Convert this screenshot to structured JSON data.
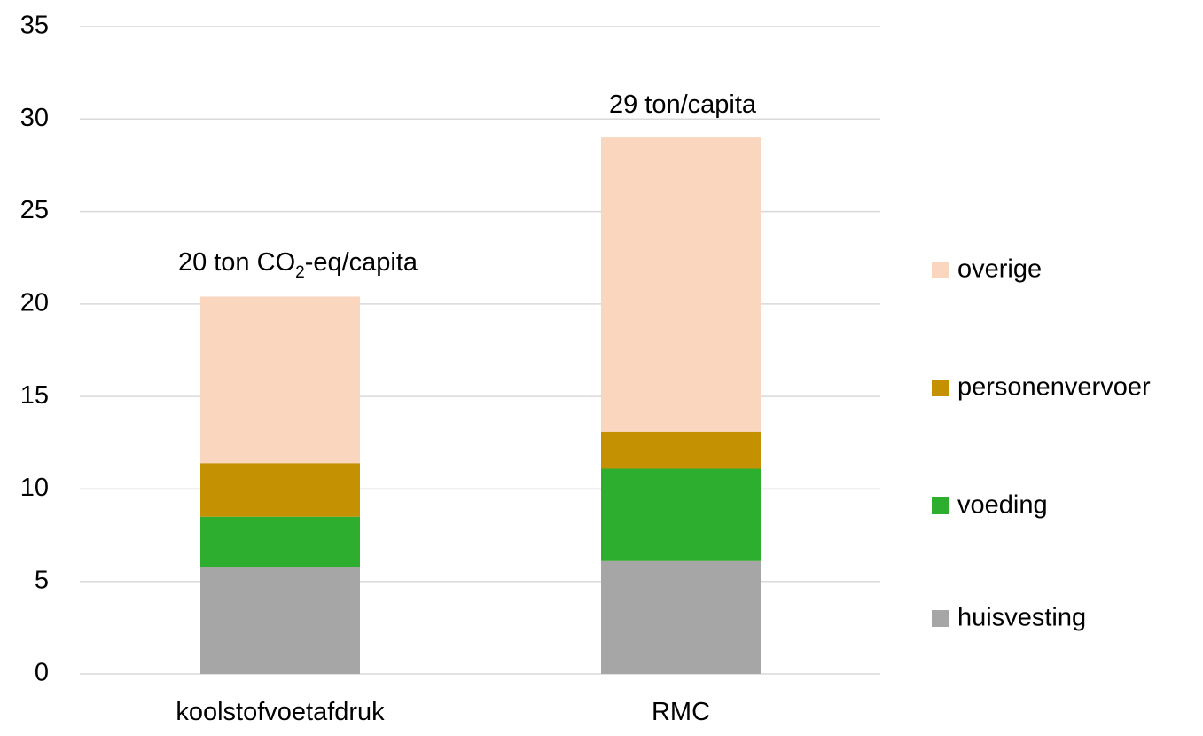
{
  "chart_data": {
    "type": "bar",
    "stacked": true,
    "categories": [
      "koolstofvoetafdruk",
      "RMC"
    ],
    "series": [
      {
        "name": "huisvesting",
        "color": "#a6a6a6",
        "values": [
          5.8,
          6.1
        ]
      },
      {
        "name": "voeding",
        "color": "#2eae2e",
        "values": [
          2.7,
          5.0
        ]
      },
      {
        "name": "personenvervoer",
        "color": "#c49102",
        "values": [
          2.9,
          2.0
        ]
      },
      {
        "name": "overige",
        "color": "#f9d6bd",
        "values": [
          9.0,
          15.9
        ]
      }
    ],
    "annotations": [
      {
        "category": "koolstofvoetafdruk",
        "text_before": "20 ton CO",
        "subscript": "2",
        "text_after": "-eq/capita"
      },
      {
        "category": "RMC",
        "text_before": "29 ton/capita",
        "subscript": "",
        "text_after": ""
      }
    ],
    "ylim": [
      0,
      35
    ],
    "yticks": [
      0,
      5,
      10,
      15,
      20,
      25,
      30,
      35
    ],
    "grid": true,
    "gridline_color": "#d9d9d9",
    "legend_position": "right",
    "legend_order": [
      "overige",
      "personenvervoer",
      "voeding",
      "huisvesting"
    ]
  }
}
